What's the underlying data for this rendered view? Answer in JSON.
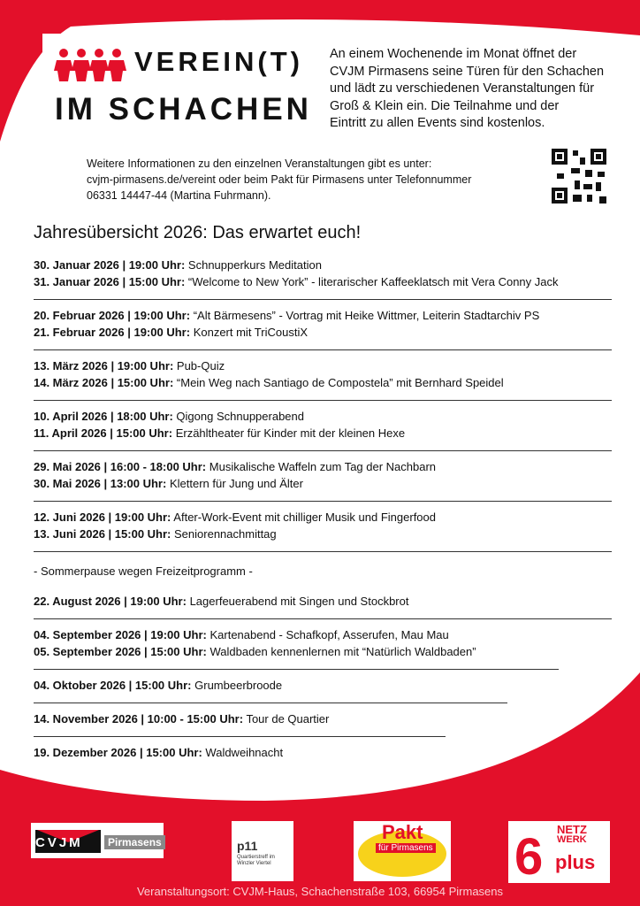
{
  "header": {
    "logo_line1": "VEREIN(T)",
    "logo_line2": "IM SCHACHEN",
    "intro": [
      "An einem Wochenende im Monat öffnet der",
      "CVJM Pirmasens seine Türen für den Schachen",
      "und lädt zu verschiedenen Veranstaltungen für",
      "Groß & Klein ein. Die Teilnahme und der",
      "Eintritt zu allen Events sind kostenlos."
    ],
    "info": [
      "Weitere Informationen zu den einzelnen Veranstaltungen gibt es unter:",
      "cvjm-pirmasens.de/vereint oder beim Pakt für Pirmasens unter Telefonnummer",
      "06331 14447-44 (Martina Fuhrmann)."
    ]
  },
  "heading": "Jahresübersicht 2026: Das erwartet euch!",
  "groups": [
    {
      "items": [
        {
          "when": "30. Januar 2026 | 19:00 Uhr:",
          "what": "Schnupperkurs Meditation"
        },
        {
          "when": "31. Januar 2026 | 15:00 Uhr:",
          "what": "“Welcome to New York” - literarischer Kaffeeklatsch mit Vera Conny Jack"
        }
      ]
    },
    {
      "items": [
        {
          "when": "20. Februar 2026 | 19:00 Uhr:",
          "what": "“Alt Bärmesens” - Vortrag mit Heike Wittmer, Leiterin Stadtarchiv PS"
        },
        {
          "when": "21. Februar 2026 | 19:00 Uhr:",
          "what": "Konzert mit TriCoustiX"
        }
      ]
    },
    {
      "items": [
        {
          "when": "13. März 2026 | 19:00 Uhr:",
          "what": "Pub-Quiz"
        },
        {
          "when": "14. März 2026 | 15:00 Uhr:",
          "what": "“Mein Weg nach Santiago de Compostela” mit Bernhard Speidel"
        }
      ]
    },
    {
      "items": [
        {
          "when": "10. April 2026 | 18:00 Uhr:",
          "what": "Qigong Schnupperabend"
        },
        {
          "when": "11. April 2026 | 15:00 Uhr:",
          "what": "Erzähltheater für Kinder mit der kleinen Hexe"
        }
      ]
    },
    {
      "items": [
        {
          "when": "29. Mai 2026 | 16:00 - 18:00 Uhr:",
          "what": "Musikalische Waffeln zum Tag der Nachbarn"
        },
        {
          "when": "30. Mai 2026 | 13:00 Uhr:",
          "what": "Klettern für Jung und Älter"
        }
      ]
    },
    {
      "items": [
        {
          "when": "12. Juni 2026 | 19:00 Uhr:",
          "what": "After-Work-Event mit chilliger Musik und Fingerfood"
        },
        {
          "when": "13. Juni 2026 | 15:00 Uhr:",
          "what": "Seniorennachmittag"
        }
      ]
    },
    {
      "note": "- Sommerpause wegen Freizeitprogramm -"
    },
    {
      "items": [
        {
          "when": "22. August 2026 | 19:00 Uhr:",
          "what": "Lagerfeuerabend mit Singen und Stockbrot"
        }
      ]
    },
    {
      "items": [
        {
          "when": "04. September 2026 | 19:00 Uhr:",
          "what": "Kartenabend - Schafkopf, Asserufen, Mau Mau"
        },
        {
          "when": "05. September 2026 | 15:00 Uhr:",
          "what": "Waldbaden kennenlernen mit “Natürlich Waldbaden”"
        }
      ]
    },
    {
      "items": [
        {
          "when": "04. Oktober 2026 | 15:00 Uhr:",
          "what": "Grumbeerbroode"
        }
      ]
    },
    {
      "items": [
        {
          "when": "14. November 2026 | 10:00 - 15:00 Uhr:",
          "what": "Tour de Quartier"
        }
      ]
    },
    {
      "items": [
        {
          "when": "19. Dezember 2026 | 15:00 Uhr:",
          "what": "Waldweihnacht"
        }
      ]
    }
  ],
  "footer": {
    "logos": {
      "cvjm": "CVJM",
      "cvjm_city": "Pirmasens",
      "p11": "p11",
      "p11_sub": "Quartierstreff im Winzler Viertel",
      "pakt": "Pakt",
      "pakt_sub": "für Pirmasens",
      "netz": "NETZ",
      "werk": "WERK",
      "six": "6",
      "plus": "plus"
    },
    "address": "Veranstaltungsort: CVJM-Haus, Schachenstraße 103, 66954 Pirmasens"
  }
}
